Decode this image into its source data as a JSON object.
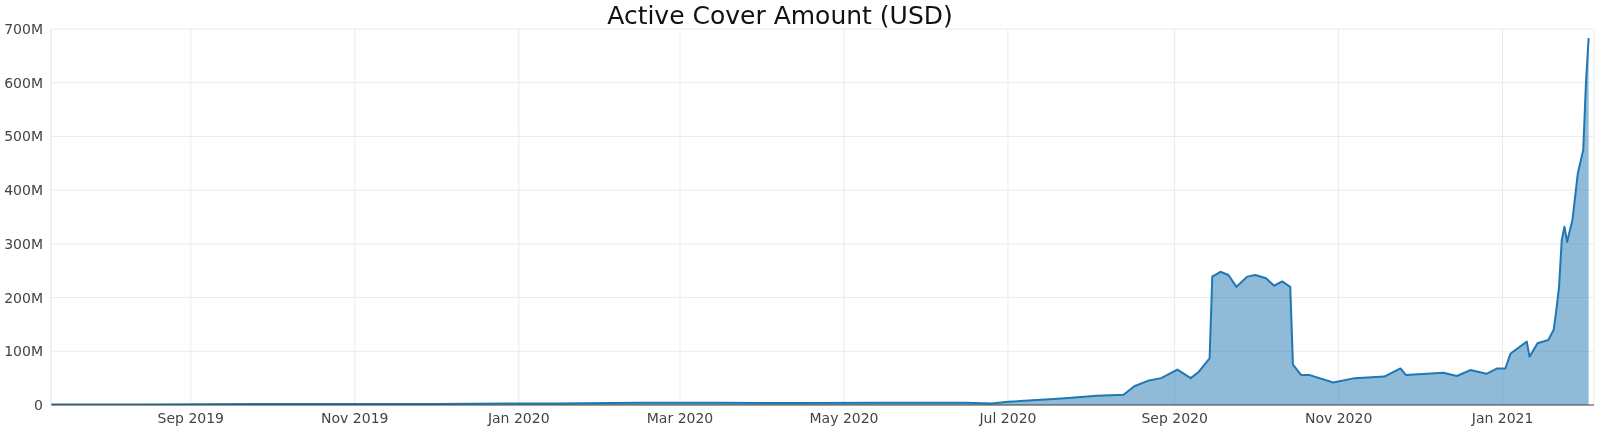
{
  "chart_data": {
    "type": "area",
    "title": "Active Cover Amount (USD)",
    "x": [
      "2019-07-11",
      "2019-08-15",
      "2019-10-01",
      "2019-12-01",
      "2020-01-15",
      "2020-02-15",
      "2020-03-15",
      "2020-04-15",
      "2020-05-15",
      "2020-06-15",
      "2020-06-25",
      "2020-07-01",
      "2020-07-21",
      "2020-08-03",
      "2020-08-13",
      "2020-08-17",
      "2020-08-22",
      "2020-08-27",
      "2020-09-02",
      "2020-09-07",
      "2020-09-10",
      "2020-09-14",
      "2020-09-15",
      "2020-09-18",
      "2020-09-21",
      "2020-09-24",
      "2020-09-28",
      "2020-10-01",
      "2020-10-05",
      "2020-10-08",
      "2020-10-11",
      "2020-10-14",
      "2020-10-15",
      "2020-10-18",
      "2020-10-21",
      "2020-10-30",
      "2020-11-07",
      "2020-11-18",
      "2020-11-24",
      "2020-11-26",
      "2020-12-10",
      "2020-12-15",
      "2020-12-20",
      "2020-12-26",
      "2020-12-30",
      "2021-01-02",
      "2021-01-04",
      "2021-01-07",
      "2021-01-10",
      "2021-01-11",
      "2021-01-14",
      "2021-01-18",
      "2021-01-20",
      "2021-01-21",
      "2021-01-22",
      "2021-01-23",
      "2021-01-24",
      "2021-01-25",
      "2021-01-27",
      "2021-01-29",
      "2021-01-31",
      "2021-02-01",
      "2021-02-02"
    ],
    "series": [
      {
        "color": "#1f77b4",
        "values": [
          1000000,
          1000000,
          2000000,
          2000000,
          3000000,
          4000000,
          4000000,
          3500000,
          4000000,
          4000000,
          3000000,
          6000000,
          12000000,
          17000000,
          19000000,
          35000000,
          45000000,
          50000000,
          66000000,
          50000000,
          62000000,
          87000000,
          239000000,
          248000000,
          242000000,
          220000000,
          239000000,
          242000000,
          236000000,
          222000000,
          230000000,
          220000000,
          75000000,
          56000000,
          56000000,
          42000000,
          50000000,
          53000000,
          68000000,
          56000000,
          60000000,
          54000000,
          65000000,
          58000000,
          68000000,
          68000000,
          96000000,
          107000000,
          118000000,
          90000000,
          115000000,
          121000000,
          140000000,
          177000000,
          220000000,
          307000000,
          332000000,
          304000000,
          345000000,
          432000000,
          475000000,
          599000000,
          683000000
        ]
      }
    ],
    "xlim": [
      "2019-07-11",
      "2021-02-04"
    ],
    "xticks": [
      {
        "value": "2019-09",
        "label": "Sep 2019"
      },
      {
        "value": "2019-11",
        "label": "Nov 2019"
      },
      {
        "value": "2020-01",
        "label": "Jan 2020"
      },
      {
        "value": "2020-03",
        "label": "Mar 2020"
      },
      {
        "value": "2020-05",
        "label": "May 2020"
      },
      {
        "value": "2020-07",
        "label": "Jul 2020"
      },
      {
        "value": "2020-09",
        "label": "Sep 2020"
      },
      {
        "value": "2020-11",
        "label": "Nov 2020"
      },
      {
        "value": "2021-01",
        "label": "Jan 2021"
      }
    ],
    "ylim": [
      0,
      700000000
    ],
    "yticks": [
      0,
      {
        "value": 100000000,
        "label": "100M"
      },
      {
        "value": 200000000,
        "label": "200M"
      },
      {
        "value": 300000000,
        "label": "300M"
      },
      {
        "value": 400000000,
        "label": "400M"
      },
      {
        "value": 500000000,
        "label": "500M"
      },
      {
        "value": 600000000,
        "label": "600M"
      },
      {
        "value": 700000000,
        "label": "700M"
      }
    ],
    "grid": true
  }
}
